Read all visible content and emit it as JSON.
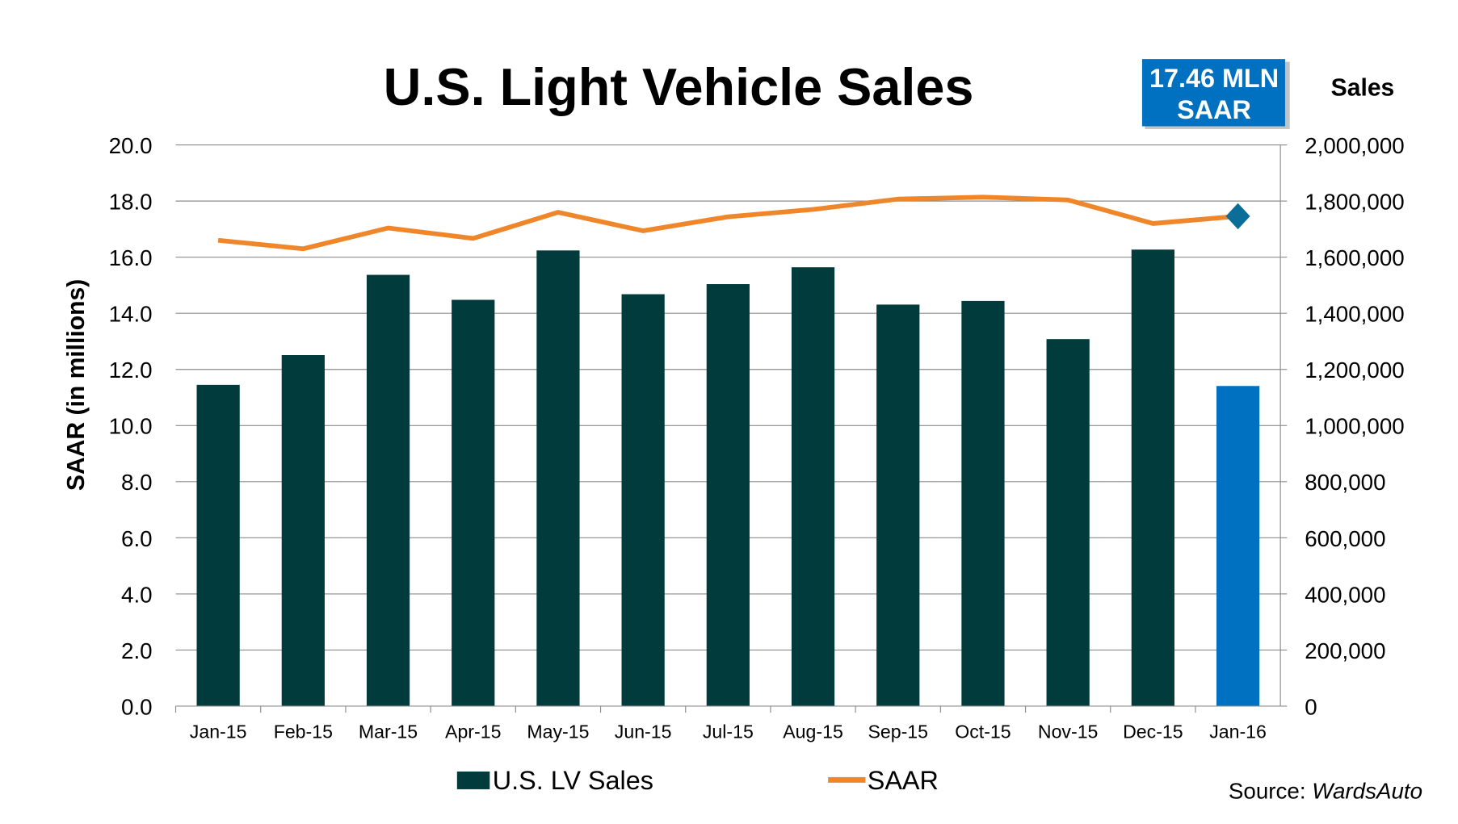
{
  "chart_data": {
    "type": "bar",
    "title": "U.S. Light Vehicle Sales",
    "callout": {
      "line1": "17.46 MLN",
      "line2": "SAAR"
    },
    "ylabel_left": "SAAR (in millions)",
    "ylabel_right": "Sales",
    "source_label": "Source: ",
    "source_name": "WardsAuto",
    "categories": [
      "Jan-15",
      "Feb-15",
      "Mar-15",
      "Apr-15",
      "May-15",
      "Jun-15",
      "Jul-15",
      "Aug-15",
      "Sep-15",
      "Oct-15",
      "Nov-15",
      "Dec-15",
      "Jan-16"
    ],
    "ylim_left": [
      0,
      20
    ],
    "ylim_right": [
      0,
      2000000
    ],
    "left_ticks": [
      "0.0",
      "2.0",
      "4.0",
      "6.0",
      "8.0",
      "10.0",
      "12.0",
      "14.0",
      "16.0",
      "18.0",
      "20.0"
    ],
    "right_ticks": [
      "0",
      "200,000",
      "400,000",
      "600,000",
      "800,000",
      "1,000,000",
      "1,200,000",
      "1,400,000",
      "1,600,000",
      "1,800,000",
      "2,000,000"
    ],
    "grid": true,
    "legend_position": "bottom",
    "series": [
      {
        "name": "U.S. LV Sales",
        "type": "bar",
        "axis": "right",
        "color": "#023B3B",
        "highlight_color": "#0070C0",
        "values": [
          1145000,
          1251000,
          1537000,
          1448000,
          1624000,
          1468000,
          1504000,
          1564000,
          1431000,
          1444000,
          1308000,
          1627000,
          1141000
        ]
      },
      {
        "name": "SAAR",
        "type": "line",
        "axis": "left",
        "color": "#F0862A",
        "marker_color": "#0B6E99",
        "values": [
          16.6,
          16.3,
          17.04,
          16.67,
          17.6,
          16.94,
          17.44,
          17.7,
          18.07,
          18.14,
          18.04,
          17.2,
          17.46
        ]
      }
    ]
  }
}
